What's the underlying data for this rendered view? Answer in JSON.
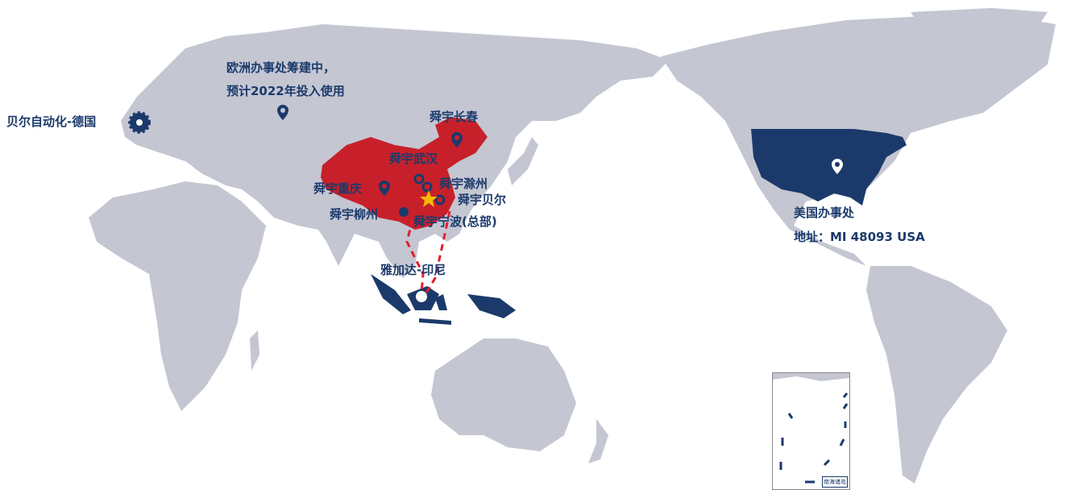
{
  "colors": {
    "land": "#c4c6d2",
    "china": "#c8202a",
    "highlight": "#1b3a6b",
    "route": "#e0202a",
    "star": "#f5b800"
  },
  "locations": {
    "europe_office": {
      "line1": "欧洲办事处筹建中，",
      "line2": "预计2022年投入使用",
      "icon": "map-pin-icon"
    },
    "germany": {
      "label": "贝尔自动化-德国",
      "icon": "gear-icon"
    },
    "changchun": {
      "label": "舜宇长春",
      "icon": "map-pin-icon"
    },
    "wuhan": {
      "label": "舜宇武汉",
      "icon": "ring-icon"
    },
    "chuzhou": {
      "label": "舜宇滁州",
      "icon": "ring-icon"
    },
    "chongqing": {
      "label": "舜宇重庆",
      "icon": "map-pin-icon"
    },
    "beier": {
      "label": "舜宇贝尔",
      "icon": "ring-icon"
    },
    "liuzhou": {
      "label": "舜宇柳州",
      "icon": "dot-icon"
    },
    "ningbo": {
      "label": "舜宇宁波(总部)",
      "icon": "star-icon"
    },
    "jakarta": {
      "label": "雅加达-印尼",
      "icon": "dot-icon"
    },
    "usa": {
      "line1": "美国办事处",
      "line2": "地址：MI 48093 USA",
      "icon": "map-pin-icon"
    }
  },
  "inset": {
    "title": "南海诸岛"
  }
}
